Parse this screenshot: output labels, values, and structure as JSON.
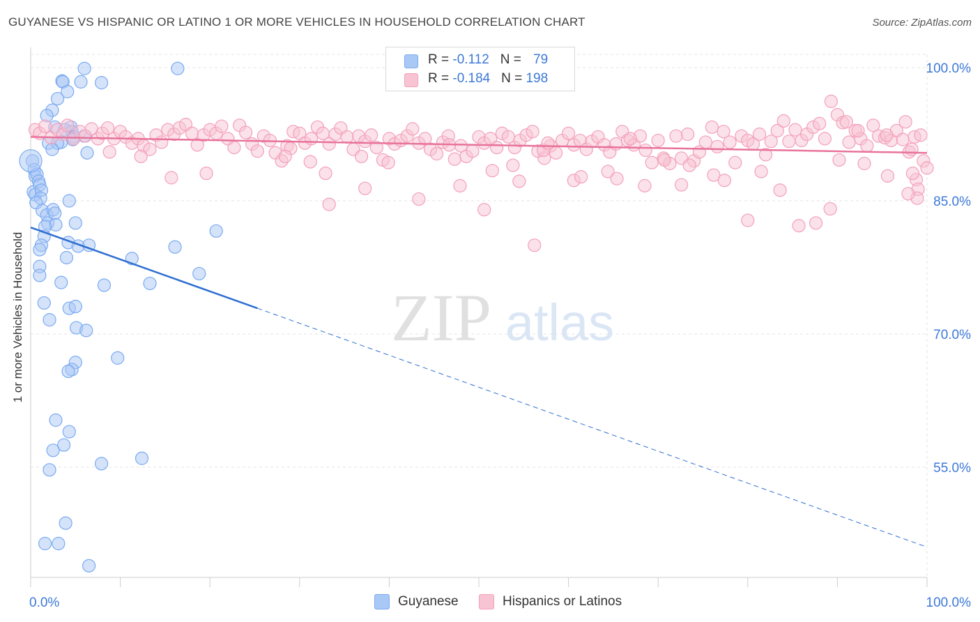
{
  "title": "GUYANESE VS HISPANIC OR LATINO 1 OR MORE VEHICLES IN HOUSEHOLD CORRELATION CHART",
  "source": "Source: ZipAtlas.com",
  "watermark": {
    "zip": "ZIP",
    "atlas": "atlas"
  },
  "legend": {
    "rows": [
      {
        "r_label": "R = ",
        "r_value": "-0.112",
        "n_label": "N = ",
        "n_value": "79"
      },
      {
        "r_label": "R = ",
        "r_value": "-0.184",
        "n_label": "N = ",
        "n_value": "198"
      }
    ]
  },
  "chart_data": {
    "type": "scatter",
    "xlabel": "",
    "ylabel": "1 or more Vehicles in Household",
    "xlim": [
      0,
      100
    ],
    "ylim": [
      42,
      100
    ],
    "x_tick_labels": [
      "0.0%",
      "100.0%"
    ],
    "y_ticks": [
      55,
      70,
      85,
      100
    ],
    "y_tick_labels": [
      "55.0%",
      "70.0%",
      "85.0%",
      "100.0%"
    ],
    "grid": true,
    "legend_position": "top-center",
    "series": [
      {
        "name": "Guyanese",
        "color": "#7aaaf0",
        "fill": "#a9c8f5",
        "line_color": "#2f6fd0",
        "trend": {
          "x": [
            0,
            25.3
          ],
          "y": [
            82.0,
            72.9
          ],
          "dashed_to_x": 100,
          "dashed_to_y": 46.0
        },
        "points": [
          [
            0.2,
            89.5
          ],
          [
            0.4,
            88.5
          ],
          [
            0.5,
            87.8
          ],
          [
            0.7,
            88.0
          ],
          [
            0.9,
            87.2
          ],
          [
            0.3,
            86.0
          ],
          [
            1.0,
            86.8
          ],
          [
            0.5,
            85.7
          ],
          [
            1.2,
            86.2
          ],
          [
            1.1,
            85.3
          ],
          [
            0.6,
            84.8
          ],
          [
            1.3,
            83.9
          ],
          [
            1.8,
            83.4
          ],
          [
            2.5,
            84.0
          ],
          [
            1.9,
            82.5
          ],
          [
            2.7,
            83.6
          ],
          [
            2.8,
            82.3
          ],
          [
            1.6,
            82.1
          ],
          [
            1.5,
            81.0
          ],
          [
            1.2,
            80.0
          ],
          [
            4.3,
            85.0
          ],
          [
            5.0,
            82.5
          ],
          [
            4.2,
            80.3
          ],
          [
            5.3,
            79.9
          ],
          [
            6.5,
            80.0
          ],
          [
            4.0,
            78.6
          ],
          [
            1.0,
            79.5
          ],
          [
            1.0,
            77.6
          ],
          [
            1.0,
            76.6
          ],
          [
            3.4,
            75.8
          ],
          [
            8.2,
            75.5
          ],
          [
            1.5,
            73.5
          ],
          [
            4.3,
            72.9
          ],
          [
            5.0,
            73.1
          ],
          [
            2.1,
            71.6
          ],
          [
            5.1,
            70.7
          ],
          [
            6.2,
            70.4
          ],
          [
            9.7,
            67.3
          ],
          [
            5.0,
            66.8
          ],
          [
            4.6,
            66.0
          ],
          [
            4.2,
            65.8
          ],
          [
            2.8,
            60.3
          ],
          [
            4.3,
            59.0
          ],
          [
            3.7,
            57.5
          ],
          [
            2.5,
            56.9
          ],
          [
            7.9,
            55.4
          ],
          [
            12.4,
            56.0
          ],
          [
            2.1,
            54.7
          ],
          [
            3.9,
            48.7
          ],
          [
            1.6,
            46.4
          ],
          [
            3.1,
            46.4
          ],
          [
            6.5,
            43.9
          ],
          [
            6.0,
            99.9
          ],
          [
            16.4,
            99.9
          ],
          [
            3.5,
            98.5
          ],
          [
            3.6,
            98.4
          ],
          [
            5.6,
            98.4
          ],
          [
            7.9,
            98.3
          ],
          [
            4.1,
            97.3
          ],
          [
            3.0,
            96.5
          ],
          [
            2.4,
            95.2
          ],
          [
            1.8,
            94.6
          ],
          [
            4.5,
            93.3
          ],
          [
            2.7,
            93.3
          ],
          [
            3.8,
            93.0
          ],
          [
            4.6,
            92.8
          ],
          [
            6.0,
            92.3
          ],
          [
            4.8,
            92.2
          ],
          [
            3.4,
            91.6
          ],
          [
            2.0,
            91.5
          ],
          [
            3.0,
            91.5
          ],
          [
            2.4,
            90.8
          ],
          [
            6.3,
            90.4
          ],
          [
            11.3,
            78.5
          ],
          [
            13.3,
            75.7
          ],
          [
            16.1,
            79.8
          ],
          [
            18.8,
            76.8
          ],
          [
            20.7,
            81.6
          ],
          [
            4.7,
            91.9
          ]
        ]
      },
      {
        "name": "Hispanics or Latinos",
        "color": "#f3a0bb",
        "fill": "#f8c4d4",
        "line_color": "#e8729a",
        "trend": {
          "x": [
            0,
            100
          ],
          "y": [
            92.2,
            90.4
          ]
        },
        "points": [
          [
            0.5,
            93.0
          ],
          [
            1.0,
            92.6
          ],
          [
            1.6,
            93.4
          ],
          [
            2.3,
            92.1
          ],
          [
            3.0,
            93.0
          ],
          [
            3.6,
            92.5
          ],
          [
            4.1,
            93.5
          ],
          [
            4.8,
            92.0
          ],
          [
            5.5,
            92.8
          ],
          [
            6.1,
            92.3
          ],
          [
            6.8,
            93.1
          ],
          [
            7.5,
            92.0
          ],
          [
            8.0,
            92.6
          ],
          [
            8.6,
            93.2
          ],
          [
            9.3,
            92.0
          ],
          [
            10.0,
            92.8
          ],
          [
            10.6,
            92.2
          ],
          [
            11.3,
            91.5
          ],
          [
            12.0,
            92.0
          ],
          [
            12.6,
            91.2
          ],
          [
            13.3,
            90.8
          ],
          [
            14.0,
            92.4
          ],
          [
            14.6,
            91.6
          ],
          [
            15.3,
            93.0
          ],
          [
            16.0,
            92.5
          ],
          [
            16.6,
            93.2
          ],
          [
            17.3,
            93.6
          ],
          [
            18.0,
            92.6
          ],
          [
            18.6,
            91.3
          ],
          [
            19.3,
            92.4
          ],
          [
            20.0,
            93.0
          ],
          [
            20.7,
            92.6
          ],
          [
            21.3,
            93.4
          ],
          [
            22.0,
            92.0
          ],
          [
            22.7,
            91.0
          ],
          [
            23.3,
            93.5
          ],
          [
            24.0,
            92.7
          ],
          [
            24.7,
            91.4
          ],
          [
            25.3,
            90.6
          ],
          [
            26.0,
            92.3
          ],
          [
            26.7,
            91.8
          ],
          [
            27.3,
            90.4
          ],
          [
            28.0,
            89.5
          ],
          [
            28.6,
            91.2
          ],
          [
            29.3,
            92.8
          ],
          [
            30.0,
            92.6
          ],
          [
            30.6,
            91.5
          ],
          [
            31.3,
            92.0
          ],
          [
            32.0,
            93.3
          ],
          [
            32.6,
            92.6
          ],
          [
            33.3,
            91.4
          ],
          [
            34.0,
            92.5
          ],
          [
            34.6,
            93.2
          ],
          [
            35.3,
            92.2
          ],
          [
            36.0,
            90.8
          ],
          [
            36.6,
            92.3
          ],
          [
            37.3,
            91.7
          ],
          [
            38.0,
            92.4
          ],
          [
            38.6,
            91.0
          ],
          [
            39.3,
            89.6
          ],
          [
            40.0,
            92.0
          ],
          [
            40.6,
            91.4
          ],
          [
            41.3,
            91.8
          ],
          [
            42.0,
            92.3
          ],
          [
            42.6,
            93.1
          ],
          [
            43.3,
            91.5
          ],
          [
            44.0,
            92.0
          ],
          [
            44.6,
            90.8
          ],
          [
            45.3,
            90.3
          ],
          [
            46.0,
            91.6
          ],
          [
            46.6,
            92.3
          ],
          [
            47.3,
            89.7
          ],
          [
            48.0,
            91.2
          ],
          [
            48.6,
            90.0
          ],
          [
            49.3,
            90.6
          ],
          [
            50.0,
            92.2
          ],
          [
            50.6,
            91.5
          ],
          [
            51.3,
            92.0
          ],
          [
            52.0,
            91.0
          ],
          [
            52.6,
            92.6
          ],
          [
            53.3,
            92.2
          ],
          [
            54.0,
            91.0
          ],
          [
            54.6,
            91.8
          ],
          [
            55.3,
            92.4
          ],
          [
            56.0,
            92.8
          ],
          [
            56.6,
            90.6
          ],
          [
            57.3,
            89.8
          ],
          [
            58.0,
            91.2
          ],
          [
            58.6,
            90.4
          ],
          [
            59.3,
            91.8
          ],
          [
            60.0,
            92.6
          ],
          [
            60.6,
            91.3
          ],
          [
            61.3,
            91.8
          ],
          [
            62.0,
            90.8
          ],
          [
            62.6,
            91.7
          ],
          [
            63.3,
            92.2
          ],
          [
            64.0,
            91.3
          ],
          [
            64.6,
            90.5
          ],
          [
            65.3,
            91.4
          ],
          [
            66.0,
            92.8
          ],
          [
            66.6,
            91.8
          ],
          [
            67.3,
            91.3
          ],
          [
            68.0,
            92.3
          ],
          [
            68.6,
            90.7
          ],
          [
            69.3,
            89.3
          ],
          [
            70.0,
            91.8
          ],
          [
            70.6,
            89.8
          ],
          [
            71.3,
            89.2
          ],
          [
            72.0,
            92.3
          ],
          [
            72.6,
            89.8
          ],
          [
            73.3,
            92.5
          ],
          [
            74.0,
            89.5
          ],
          [
            74.6,
            90.5
          ],
          [
            75.3,
            91.6
          ],
          [
            76.0,
            93.3
          ],
          [
            76.6,
            91.1
          ],
          [
            77.3,
            92.8
          ],
          [
            78.0,
            91.6
          ],
          [
            78.6,
            89.3
          ],
          [
            79.3,
            92.3
          ],
          [
            80.0,
            91.8
          ],
          [
            80.6,
            91.4
          ],
          [
            81.3,
            92.5
          ],
          [
            82.0,
            90.2
          ],
          [
            82.6,
            91.7
          ],
          [
            83.3,
            92.9
          ],
          [
            84.0,
            94.0
          ],
          [
            84.6,
            91.7
          ],
          [
            85.3,
            93.0
          ],
          [
            86.0,
            91.8
          ],
          [
            86.6,
            92.5
          ],
          [
            87.3,
            93.3
          ],
          [
            88.0,
            93.7
          ],
          [
            88.6,
            92.0
          ],
          [
            89.3,
            96.2
          ],
          [
            90.0,
            94.7
          ],
          [
            90.6,
            93.8
          ],
          [
            91.3,
            91.6
          ],
          [
            92.0,
            92.9
          ],
          [
            92.6,
            92.0
          ],
          [
            93.3,
            91.2
          ],
          [
            94.0,
            93.5
          ],
          [
            94.6,
            92.3
          ],
          [
            95.3,
            92.1
          ],
          [
            96.0,
            91.8
          ],
          [
            96.6,
            92.9
          ],
          [
            97.3,
            91.9
          ],
          [
            98.0,
            90.5
          ],
          [
            98.6,
            92.2
          ],
          [
            99.3,
            92.4
          ],
          [
            99.6,
            89.5
          ],
          [
            100.0,
            88.7
          ],
          [
            98.8,
            87.4
          ],
          [
            99.0,
            86.3
          ],
          [
            98.9,
            85.3
          ],
          [
            98.3,
            90.8
          ],
          [
            97.6,
            93.9
          ],
          [
            95.5,
            92.4
          ],
          [
            92.3,
            92.9
          ],
          [
            91.0,
            93.9
          ],
          [
            8.8,
            90.5
          ],
          [
            12.3,
            90.0
          ],
          [
            15.7,
            87.6
          ],
          [
            19.6,
            88.1
          ],
          [
            29.0,
            90.9
          ],
          [
            28.4,
            90.0
          ],
          [
            31.2,
            89.4
          ],
          [
            36.9,
            90.0
          ],
          [
            39.9,
            89.3
          ],
          [
            46.7,
            91.3
          ],
          [
            51.5,
            88.4
          ],
          [
            53.8,
            89.0
          ],
          [
            54.5,
            87.2
          ],
          [
            57.2,
            90.7
          ],
          [
            60.6,
            87.3
          ],
          [
            61.4,
            87.7
          ],
          [
            64.4,
            88.3
          ],
          [
            66.9,
            92.0
          ],
          [
            68.5,
            86.7
          ],
          [
            70.7,
            89.6
          ],
          [
            72.6,
            86.8
          ],
          [
            73.5,
            89.0
          ],
          [
            76.2,
            87.9
          ],
          [
            77.4,
            87.3
          ],
          [
            80.0,
            82.8
          ],
          [
            83.6,
            86.2
          ],
          [
            85.7,
            82.2
          ],
          [
            87.6,
            82.5
          ],
          [
            89.2,
            84.1
          ],
          [
            90.2,
            89.6
          ],
          [
            93.0,
            89.2
          ],
          [
            95.6,
            87.8
          ],
          [
            97.9,
            85.8
          ],
          [
            98.4,
            88.1
          ],
          [
            81.5,
            88.3
          ],
          [
            57.7,
            91.5
          ],
          [
            32.9,
            88.1
          ],
          [
            33.3,
            84.6
          ],
          [
            50.6,
            84.0
          ],
          [
            56.2,
            80.0
          ],
          [
            37.3,
            86.4
          ],
          [
            43.3,
            85.2
          ],
          [
            47.9,
            86.7
          ],
          [
            65.4,
            87.5
          ]
        ]
      }
    ]
  }
}
